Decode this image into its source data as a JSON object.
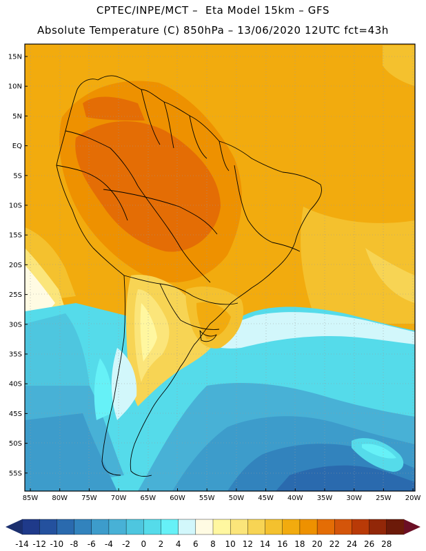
{
  "title_line1": "CPTEC/INPE/MCT –  Eta Model 15km – GFS",
  "title_line2": "Absolute Temperature (C) 850hPa – 13/06/2020 12UTC fct=43h",
  "lat_ticks": [
    "15N",
    "10N",
    "5N",
    "EQ",
    "5S",
    "10S",
    "15S",
    "20S",
    "25S",
    "30S",
    "35S",
    "40S",
    "45S",
    "50S",
    "55S"
  ],
  "lon_ticks": [
    "85W",
    "80W",
    "75W",
    "70W",
    "65W",
    "60W",
    "55W",
    "50W",
    "45W",
    "40W",
    "35W",
    "30W",
    "25W",
    "20W"
  ],
  "colorbar": {
    "labels": [
      "-14",
      "-12",
      "-10",
      "-8",
      "-6",
      "-4",
      "-2",
      "0",
      "2",
      "4",
      "6",
      "8",
      "10",
      "12",
      "14",
      "16",
      "18",
      "20",
      "22",
      "24",
      "26",
      "28"
    ],
    "colors": [
      "#1f3a8a",
      "#24519e",
      "#2a6aae",
      "#3283bd",
      "#3d9ccb",
      "#48b1d6",
      "#4ec6df",
      "#55dbea",
      "#66f1f7",
      "#d2f7fb",
      "#fffbe3",
      "#fff7a0",
      "#fbe57a",
      "#f7d454",
      "#f4c12e",
      "#f2ab0e",
      "#ee9100",
      "#e46d05",
      "#d4550a",
      "#b93a07",
      "#922708",
      "#6c1a09"
    ],
    "left_cap": "#1b2f6e",
    "right_cap": "#6b0f25"
  }
}
